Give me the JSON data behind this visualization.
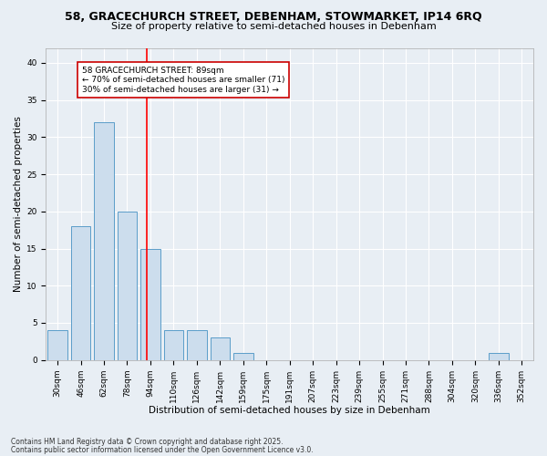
{
  "title1": "58, GRACECHURCH STREET, DEBENHAM, STOWMARKET, IP14 6RQ",
  "title2": "Size of property relative to semi-detached houses in Debenham",
  "xlabel": "Distribution of semi-detached houses by size in Debenham",
  "ylabel": "Number of semi-detached properties",
  "categories": [
    "30sqm",
    "46sqm",
    "62sqm",
    "78sqm",
    "94sqm",
    "110sqm",
    "126sqm",
    "142sqm",
    "159sqm",
    "175sqm",
    "191sqm",
    "207sqm",
    "223sqm",
    "239sqm",
    "255sqm",
    "271sqm",
    "288sqm",
    "304sqm",
    "320sqm",
    "336sqm",
    "352sqm"
  ],
  "values": [
    4,
    18,
    32,
    20,
    15,
    4,
    4,
    3,
    1,
    0,
    0,
    0,
    0,
    0,
    0,
    0,
    0,
    0,
    0,
    1,
    0
  ],
  "bar_color": "#ccdded",
  "bar_edge_color": "#5b9dc9",
  "red_line_x": 3.85,
  "annotation_text": "58 GRACECHURCH STREET: 89sqm\n← 70% of semi-detached houses are smaller (71)\n30% of semi-detached houses are larger (31) →",
  "annotation_box_color": "#ffffff",
  "annotation_box_edge_color": "#cc0000",
  "ylim": [
    0,
    42
  ],
  "yticks": [
    0,
    5,
    10,
    15,
    20,
    25,
    30,
    35,
    40
  ],
  "footer1": "Contains HM Land Registry data © Crown copyright and database right 2025.",
  "footer2": "Contains public sector information licensed under the Open Government Licence v3.0.",
  "bg_color": "#e8eef4",
  "plot_bg_color": "#e8eef4",
  "grid_color": "#ffffff",
  "title_fontsize": 9,
  "subtitle_fontsize": 8,
  "axis_label_fontsize": 7.5,
  "tick_fontsize": 6.5,
  "annotation_fontsize": 6.5,
  "ylabel_fontsize": 7.5
}
